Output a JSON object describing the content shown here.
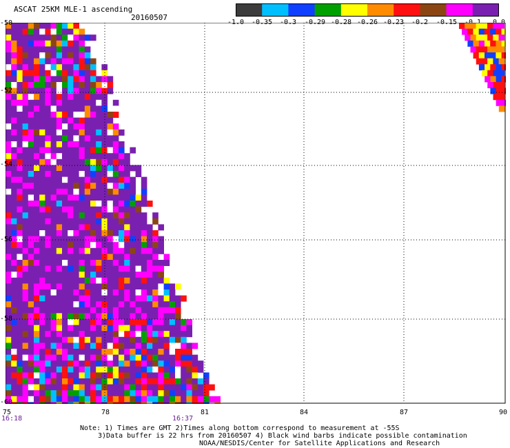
{
  "header": {
    "title": "ASCAT 25KM MLE-1 ascending",
    "date": "20160507"
  },
  "colorbar": {
    "colors": [
      "#3c3c3c",
      "#00bfff",
      "#1040ff",
      "#00a000",
      "#ffff00",
      "#ff8c00",
      "#ff1010",
      "#8b4513",
      "#ff00ff",
      "#7a20b0"
    ],
    "labels": [
      "-1.0",
      "-0.35",
      "-0.3",
      "-0.29",
      "-0.28",
      "-0.26",
      "-0.23",
      "-0.2",
      "-0.15",
      "-0.1",
      "0.0"
    ]
  },
  "axes": {
    "x_ticks": [
      "75",
      "78",
      "81",
      "84",
      "87",
      "90"
    ],
    "y_ticks": [
      "-50",
      "-52",
      "-54",
      "-56",
      "-58",
      "-60"
    ],
    "times": [
      "16:18",
      "16:37"
    ]
  },
  "notes": {
    "line1": "Note: 1) Times are GMT 2)Times along bottom correspond to measurement at -55S",
    "line2": "3)Data buffer is 22 hrs from 20160507 4) Black wind barbs indicate possible contamination",
    "line3": "NOAA/NESDIS/Center for Satellite Applications and Research"
  }
}
